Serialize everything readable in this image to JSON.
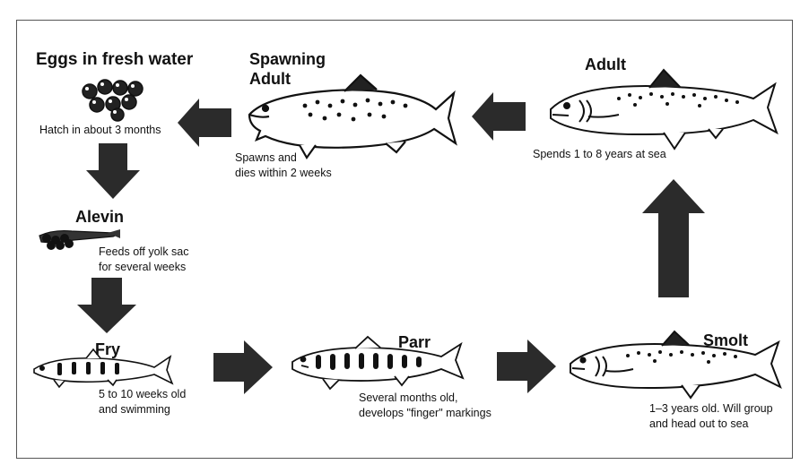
{
  "stages": {
    "eggs": {
      "title": "Eggs in fresh water",
      "caption": "Hatch in about 3 months"
    },
    "alevin": {
      "title": "Alevin",
      "caption_line1": "Feeds off yolk sac",
      "caption_line2": "for several weeks"
    },
    "fry": {
      "title": "Fry",
      "caption_line1": "5 to 10 weeks old",
      "caption_line2": "and swimming"
    },
    "parr": {
      "title": "Parr",
      "caption_line1": "Several months old,",
      "caption_line2": "develops \"finger\" markings"
    },
    "smolt": {
      "title": "Smolt",
      "caption_line1": "1–3 years old. Will group",
      "caption_line2": "and head out to sea"
    },
    "adult": {
      "title": "Adult",
      "caption": "Spends 1 to 8 years at sea"
    },
    "spawning": {
      "title_line1": "Spawning",
      "title_line2": "Adult",
      "caption_line1": "Spawns and",
      "caption_line2": "dies within 2 weeks"
    }
  },
  "colors": {
    "ink": "#111111",
    "arrow": "#2b2b2b",
    "frame": "#555555"
  }
}
